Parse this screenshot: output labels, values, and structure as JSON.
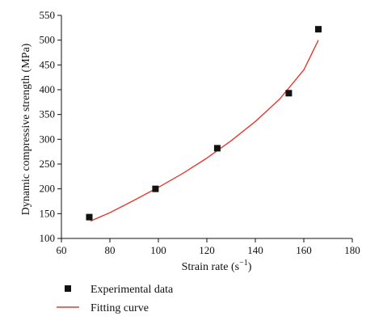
{
  "chart_data": {
    "type": "scatter",
    "xlabel": "Strain rate (s",
    "xlabel_unit_exponent": "−1",
    "xlabel_close": ")",
    "ylabel": "Dynamic compressive strength (MPa)",
    "xlim": [
      60,
      180
    ],
    "ylim": [
      100,
      550
    ],
    "x_ticks": [
      60,
      80,
      100,
      120,
      140,
      160,
      180
    ],
    "y_ticks": [
      100,
      150,
      200,
      250,
      300,
      350,
      400,
      450,
      500,
      550
    ],
    "grid": false,
    "legend_position": "bottom-left",
    "series": [
      {
        "name": "Experimental data",
        "kind": "points",
        "marker": "square",
        "color": "#111111",
        "x": [
          71.5,
          98.8,
          124.3,
          153.8,
          166.0
        ],
        "y": [
          143,
          200,
          282,
          393,
          522
        ]
      },
      {
        "name": "Fitting curve",
        "kind": "line",
        "color": "#e8392f",
        "x": [
          72,
          80,
          90,
          100,
          110,
          120,
          130,
          140,
          150,
          160,
          166
        ],
        "y": [
          135,
          152,
          177,
          203,
          231,
          262,
          297,
          336,
          381,
          440,
          500
        ]
      }
    ]
  }
}
